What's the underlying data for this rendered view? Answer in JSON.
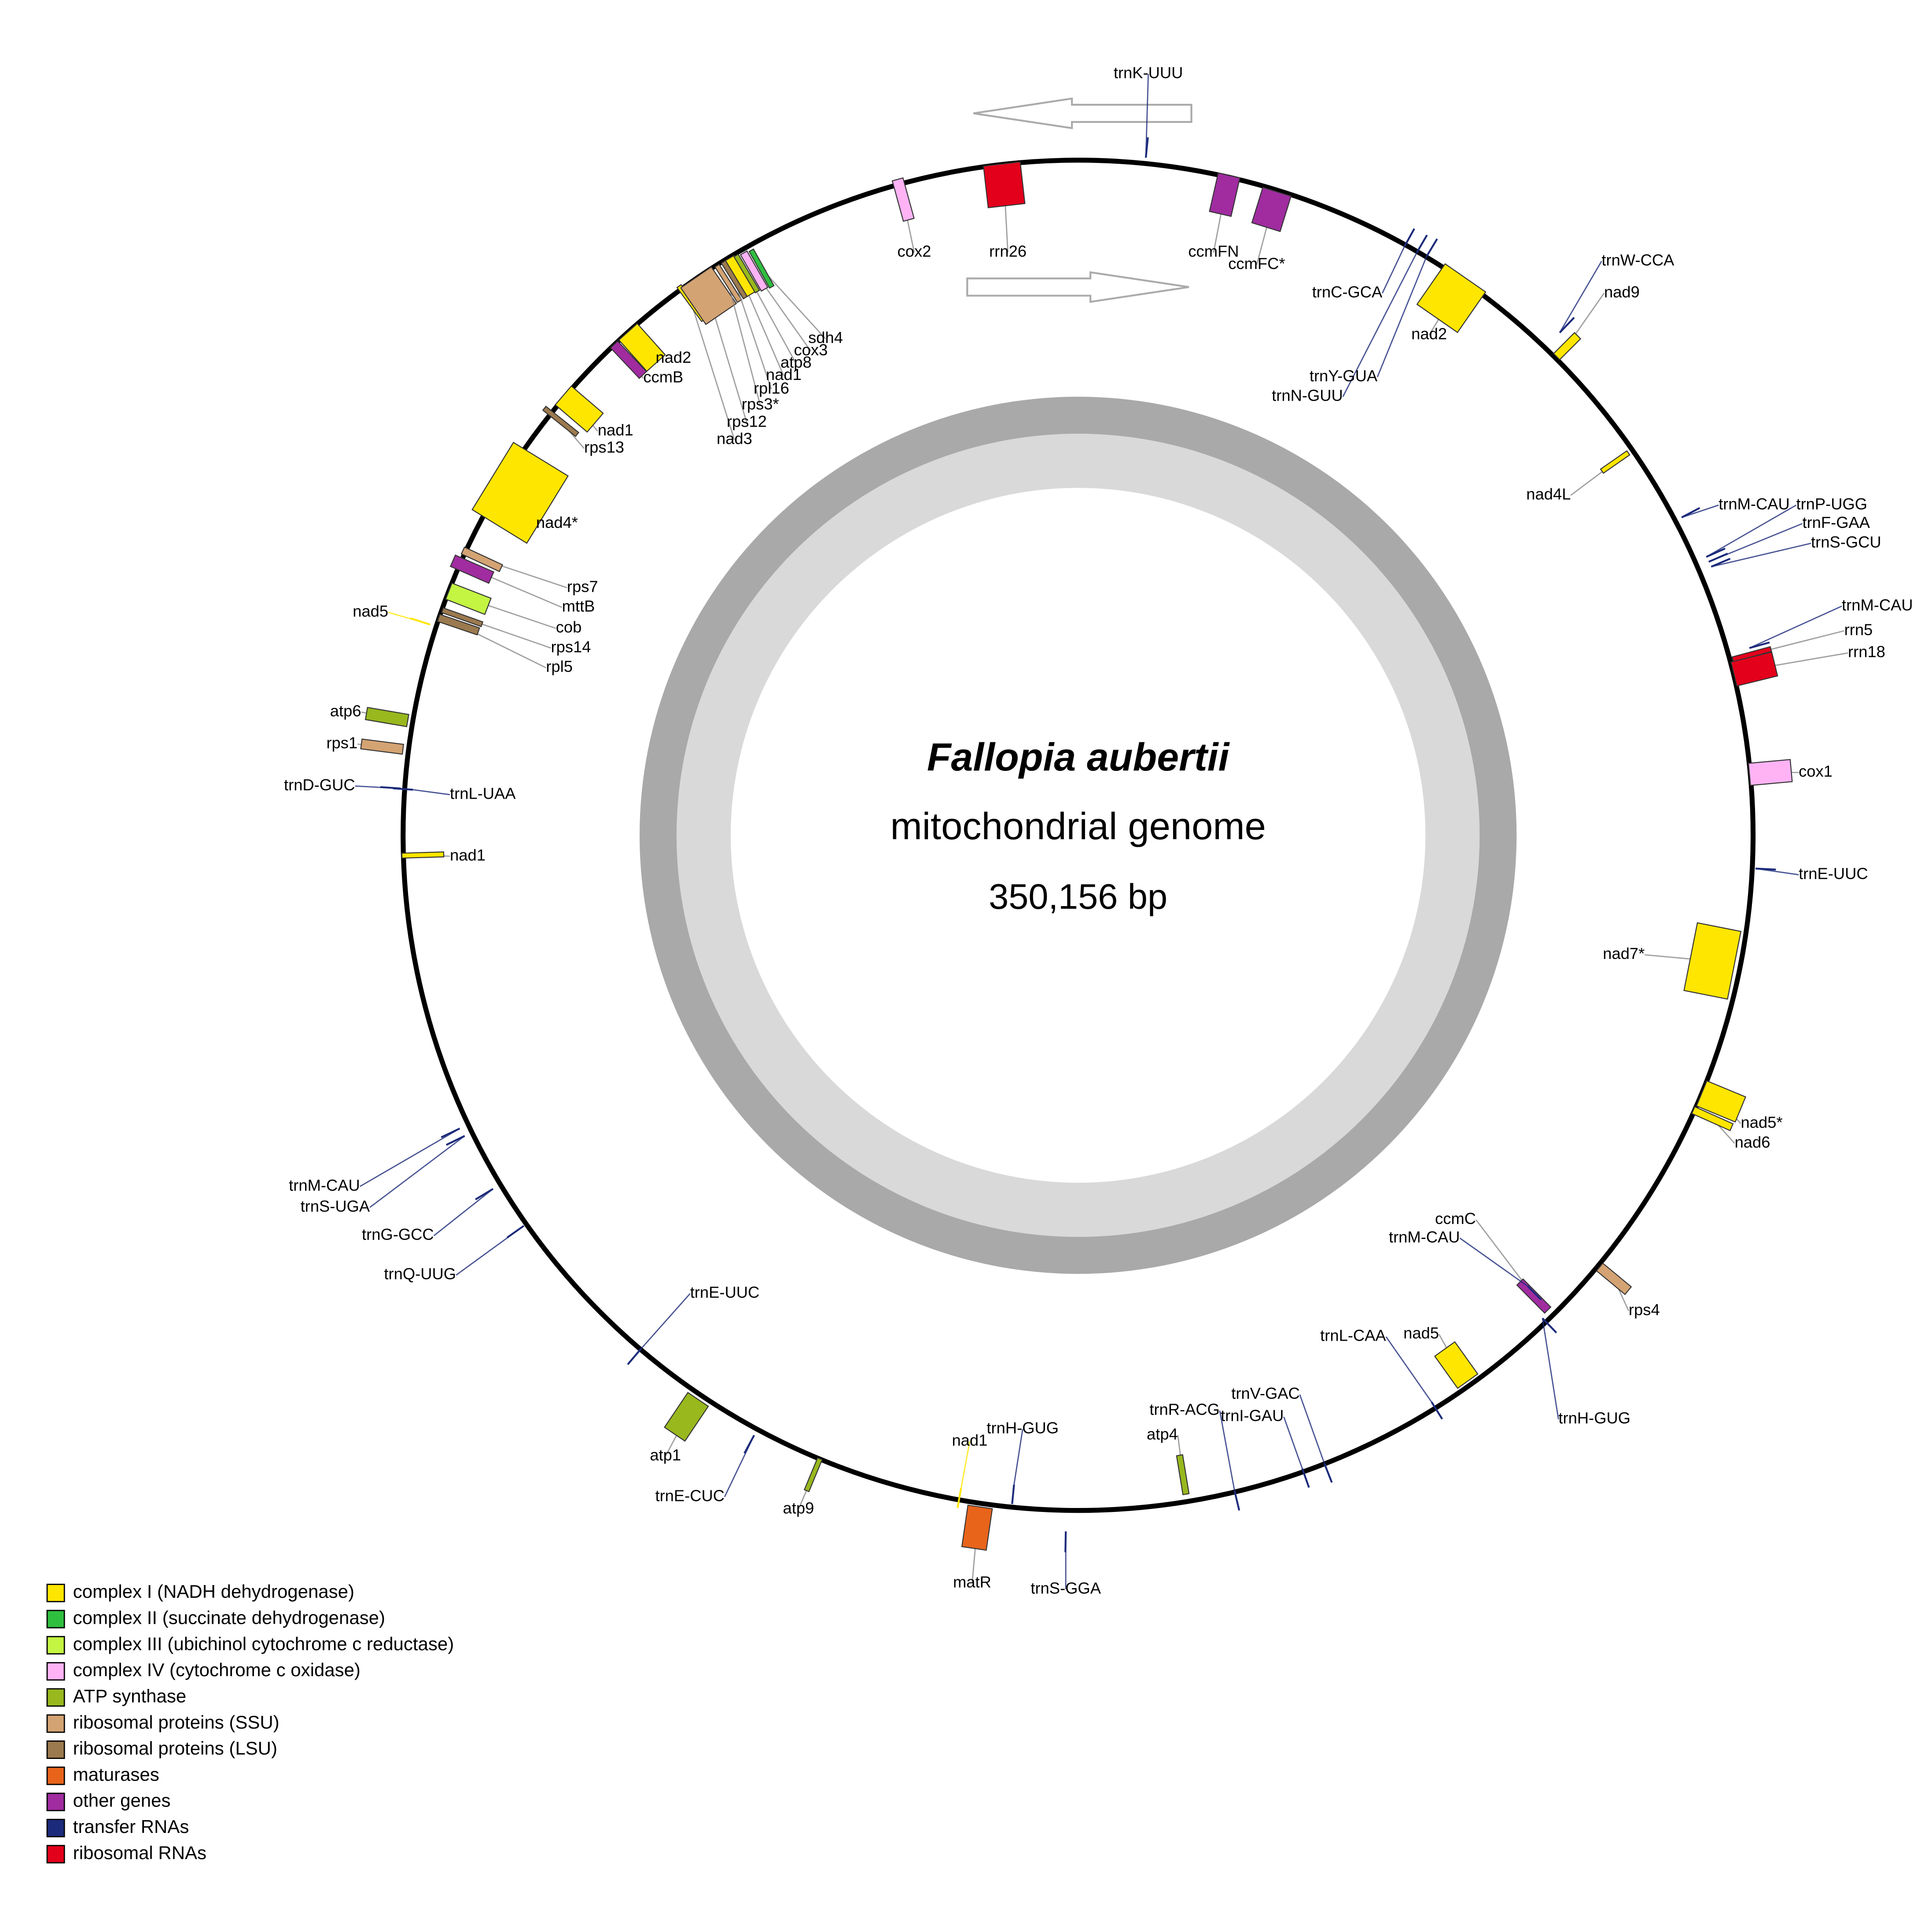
{
  "title": "Fallopia aubertii",
  "subtitle": "mitochondrial genome",
  "size": "350,156 bp",
  "legend": [
    {
      "label": "complex I (NADH dehydrogenase)",
      "color": "#ffe600"
    },
    {
      "label": "complex II (succinate dehydrogenase)",
      "color": "#2fbf3f"
    },
    {
      "label": "complex III (ubichinol cytochrome c reductase)",
      "color": "#c3f542"
    },
    {
      "label": "complex IV (cytochrome c oxidase)",
      "color": "#ffb3f5"
    },
    {
      "label": "ATP synthase",
      "color": "#98b81e"
    },
    {
      "label": "ribosomal proteins (SSU)",
      "color": "#d4a373"
    },
    {
      "label": "ribosomal proteins (LSU)",
      "color": "#9c7a4f"
    },
    {
      "label": "maturases",
      "color": "#e8641b"
    },
    {
      "label": "other genes",
      "color": "#a02ca0"
    },
    {
      "label": "transfer RNAs",
      "color": "#1b2a7a"
    },
    {
      "label": "ribosomal RNAs",
      "color": "#e3001b"
    }
  ],
  "genes": [
    {
      "label": "trnK-UUU",
      "group": 9
    },
    {
      "label": "cox2",
      "group": 3
    },
    {
      "label": "rrn26",
      "group": 10
    },
    {
      "label": "ccmFN",
      "group": 8
    },
    {
      "label": "ccmFC*",
      "group": 8
    },
    {
      "label": "trnC-GCA",
      "group": 9
    },
    {
      "label": "trnN-GUU",
      "group": 9
    },
    {
      "label": "trnY-GUA",
      "group": 9
    },
    {
      "label": "nad2",
      "group": 0
    },
    {
      "label": "trnW-CCA",
      "group": 9
    },
    {
      "label": "nad9",
      "group": 0
    },
    {
      "label": "nad4L",
      "group": 0
    },
    {
      "label": "trnM-CAU",
      "group": 9
    },
    {
      "label": "trnP-UGG",
      "group": 9
    },
    {
      "label": "trnF-GAA",
      "group": 9
    },
    {
      "label": "trnS-GCU",
      "group": 9
    },
    {
      "label": "trnM-CAU",
      "group": 9
    },
    {
      "label": "rrn5",
      "group": 10
    },
    {
      "label": "rrn18",
      "group": 10
    },
    {
      "label": "cox1",
      "group": 3
    },
    {
      "label": "trnE-UUC",
      "group": 9
    },
    {
      "label": "nad7*",
      "group": 0
    },
    {
      "label": "nad5*",
      "group": 0
    },
    {
      "label": "nad6",
      "group": 0
    },
    {
      "label": "rps4",
      "group": 5
    },
    {
      "label": "trnH-GUG",
      "group": 9
    },
    {
      "label": "ccmC",
      "group": 8
    },
    {
      "label": "trnM-CAU",
      "group": 9
    },
    {
      "label": "nad5",
      "group": 0
    },
    {
      "label": "trnL-CAA",
      "group": 9
    },
    {
      "label": "trnV-GAC",
      "group": 9
    },
    {
      "label": "trnI-GAU",
      "group": 9
    },
    {
      "label": "trnR-ACG",
      "group": 9
    },
    {
      "label": "atp4",
      "group": 4
    },
    {
      "label": "trnS-GGA",
      "group": 9
    },
    {
      "label": "trnH-GUG",
      "group": 9
    },
    {
      "label": "nad1",
      "group": 0
    },
    {
      "label": "matR",
      "group": 7
    },
    {
      "label": "atp9",
      "group": 4
    },
    {
      "label": "trnE-CUC",
      "group": 9
    },
    {
      "label": "atp1",
      "group": 4
    },
    {
      "label": "trnE-UUC",
      "group": 9
    },
    {
      "label": "trnQ-UUG",
      "group": 9
    },
    {
      "label": "trnG-GCC",
      "group": 9
    },
    {
      "label": "trnS-UGA",
      "group": 9
    },
    {
      "label": "trnM-CAU",
      "group": 9
    },
    {
      "label": "nad1",
      "group": 0
    },
    {
      "label": "trnL-UAA",
      "group": 9
    },
    {
      "label": "trnD-GUC",
      "group": 9
    },
    {
      "label": "rps1",
      "group": 5
    },
    {
      "label": "atp6",
      "group": 4
    },
    {
      "label": "nad5",
      "group": 0
    },
    {
      "label": "rpl5",
      "group": 6
    },
    {
      "label": "rps14",
      "group": 6
    },
    {
      "label": "cob",
      "group": 2
    },
    {
      "label": "mttB",
      "group": 8
    },
    {
      "label": "rps7",
      "group": 5
    },
    {
      "label": "nad4*",
      "group": 0
    },
    {
      "label": "rps13",
      "group": 6
    },
    {
      "label": "nad1",
      "group": 0
    },
    {
      "label": "ccmB",
      "group": 8
    },
    {
      "label": "nad2",
      "group": 0
    },
    {
      "label": "nad3",
      "group": 0
    },
    {
      "label": "rps12",
      "group": 5
    },
    {
      "label": "rps3*",
      "group": 5
    },
    {
      "label": "rpl16",
      "group": 6
    },
    {
      "label": "nad1",
      "group": 0
    },
    {
      "label": "atp8",
      "group": 4
    },
    {
      "label": "cox3",
      "group": 3
    },
    {
      "label": "sdh4",
      "group": 1
    }
  ]
}
